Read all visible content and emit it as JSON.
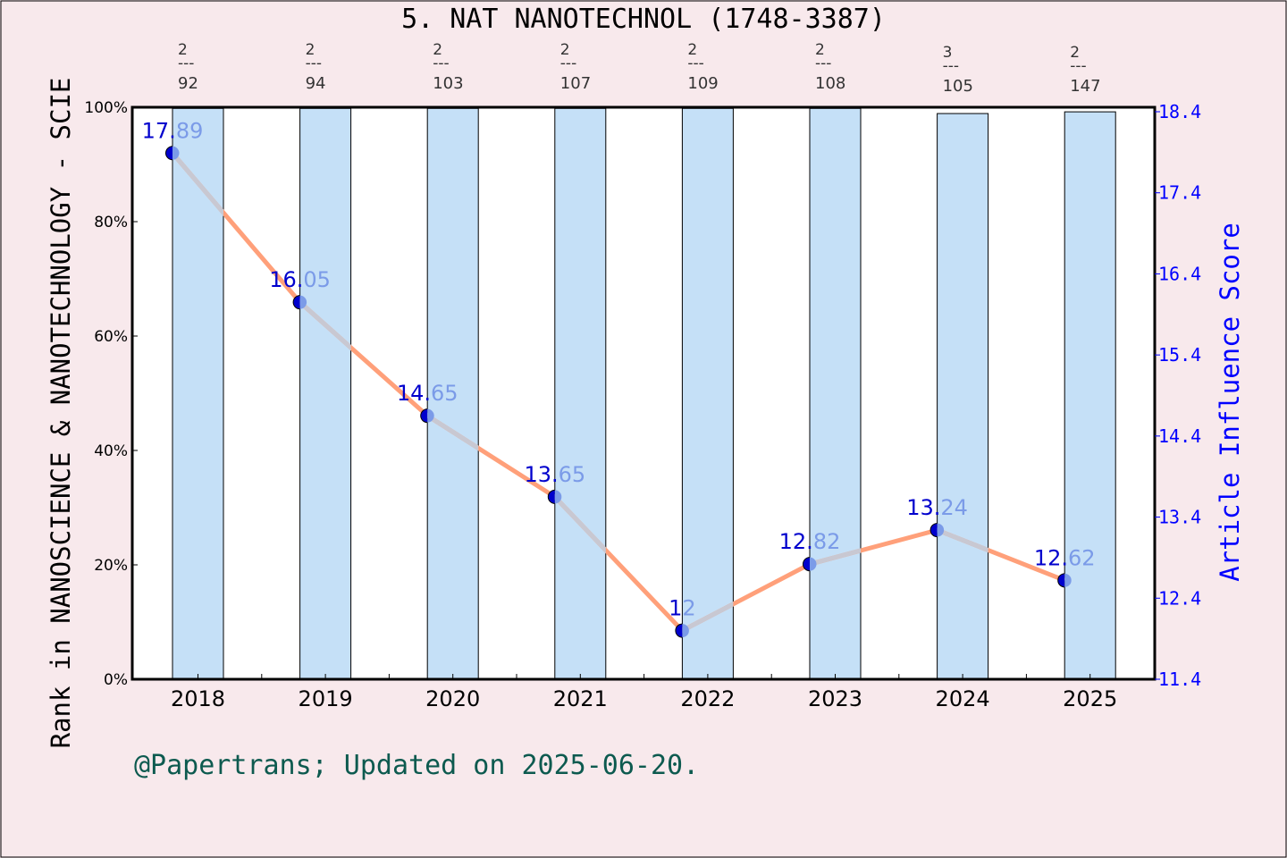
{
  "chart_data": {
    "type": "bar+line",
    "title": "5. NAT NANOTECHNOL (1748-3387)",
    "ylabel_left": "Rank in NANOSCIENCE & NANOTECHNOLOGY - SCIE",
    "ylabel_right": "Article Influence Score",
    "footer": "@Papertrans; Updated on 2025-06-20.",
    "categories": [
      "2018",
      "2019",
      "2020",
      "2021",
      "2022",
      "2023",
      "2024",
      "2025"
    ],
    "bars": {
      "values_percent": [
        99.8,
        99.8,
        99.8,
        99.8,
        99.8,
        99.8,
        98.9,
        99.2
      ],
      "color": "#c5e0f7"
    },
    "rank_annotations": [
      {
        "rank": "2",
        "total": "92"
      },
      {
        "rank": "2",
        "total": "94"
      },
      {
        "rank": "2",
        "total": "103"
      },
      {
        "rank": "2",
        "total": "107"
      },
      {
        "rank": "2",
        "total": "109"
      },
      {
        "rank": "2",
        "total": "108"
      },
      {
        "rank": "3",
        "total": "105"
      },
      {
        "rank": "2",
        "total": "147"
      }
    ],
    "line": {
      "values": [
        17.89,
        16.05,
        14.65,
        13.65,
        12,
        12.82,
        13.24,
        12.62
      ],
      "labels": [
        "17.89",
        "16.05",
        "14.65",
        "13.65",
        "12",
        "12.82",
        "13.24",
        "12.62"
      ],
      "color_outside_bars": "#ffa07a",
      "color_inside_bars": "#c8c8d2",
      "marker_colors": [
        "#0000cd",
        "#7b9be8"
      ]
    },
    "left_axis": {
      "ylim": [
        0,
        100
      ],
      "ticks": [
        "0%",
        "20%",
        "40%",
        "60%",
        "80%",
        "100%"
      ]
    },
    "right_axis": {
      "ylim": [
        11.4,
        18.4
      ],
      "ticks": [
        "11.4",
        "12.4",
        "13.4",
        "14.4",
        "15.4",
        "16.4",
        "17.4",
        "18.4"
      ],
      "color": "#0000ff"
    },
    "grid": false
  }
}
